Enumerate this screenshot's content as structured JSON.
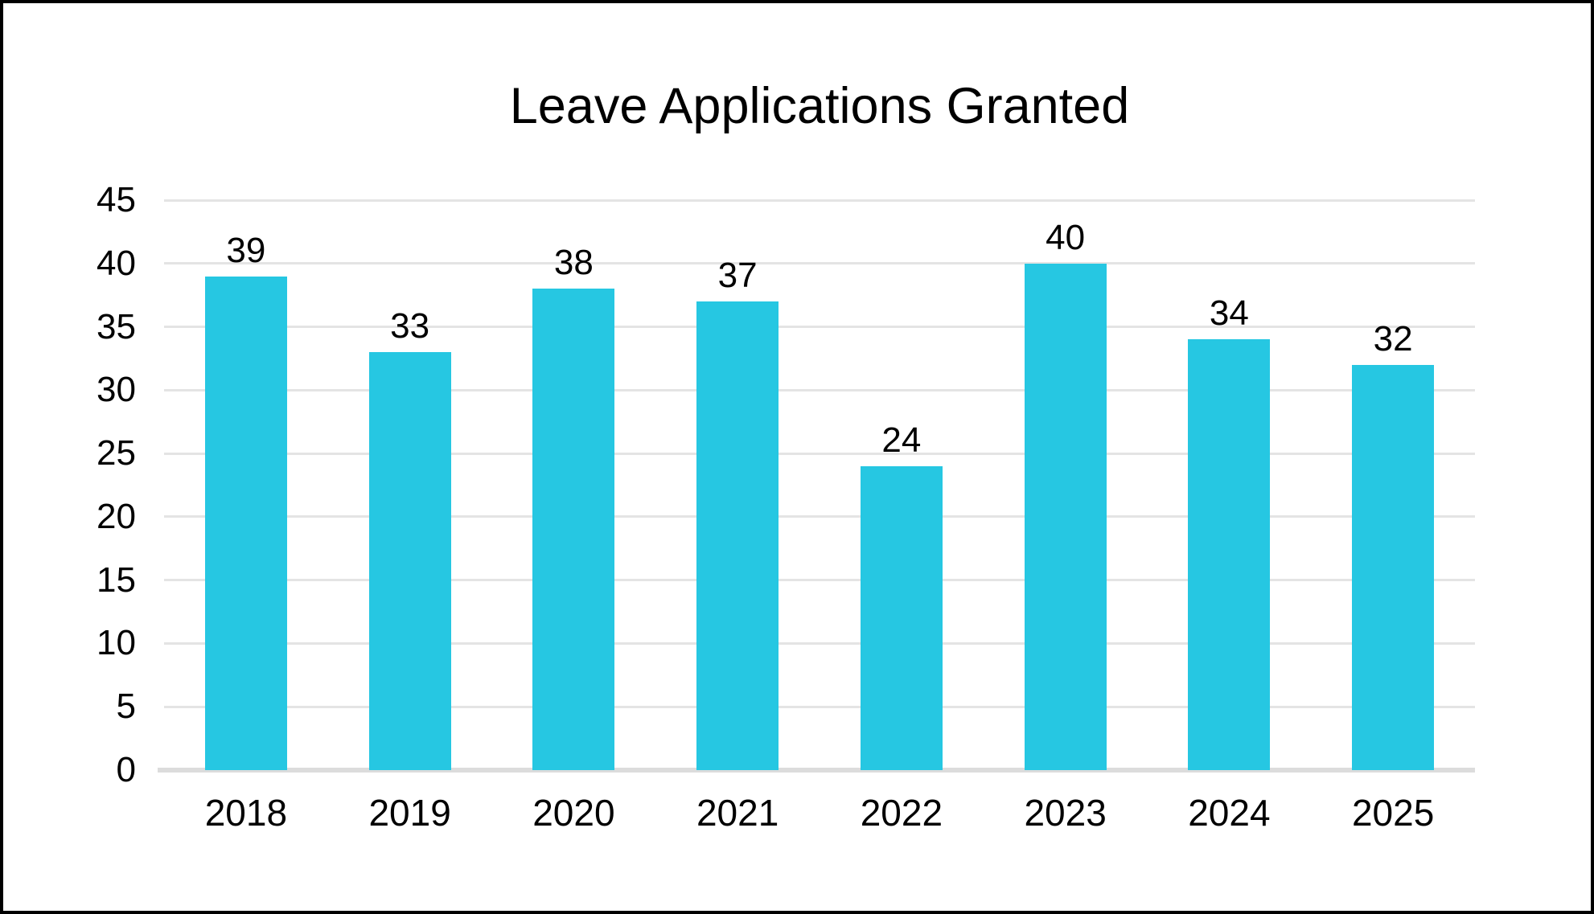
{
  "chart_data": {
    "type": "bar",
    "title": "Leave Applications Granted",
    "categories": [
      "2018",
      "2019",
      "2020",
      "2021",
      "2022",
      "2023",
      "2024",
      "2025"
    ],
    "values": [
      39,
      33,
      38,
      37,
      24,
      40,
      34,
      32
    ],
    "xlabel": "",
    "ylabel": "",
    "ylim": [
      0,
      45
    ],
    "yticks": [
      0,
      5,
      10,
      15,
      20,
      25,
      30,
      35,
      40,
      45
    ],
    "grid": "horizontal",
    "legend": "none",
    "data_labels": "above-bars",
    "colors": {
      "bar_fill": "#26c7e2",
      "gridline": "#e4e4e4",
      "axis_line": "#dcdcdc",
      "text": "#000000",
      "frame_border": "#000000",
      "background": "#ffffff"
    }
  }
}
